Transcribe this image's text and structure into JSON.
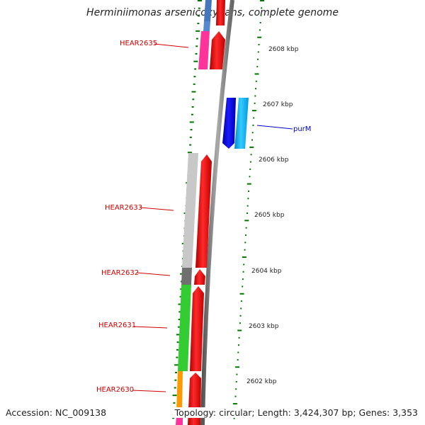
{
  "title": "Herminiimonas arsenicoxydans, complete genome",
  "footer": {
    "accession": "Accession: NC_009138",
    "topology": "Topology: circular; Length: 3,424,307 bp; Genes: 3,353"
  },
  "ruler": {
    "unit": "kbp",
    "labels": [
      "2608 kbp",
      "2607 kbp",
      "2606 kbp",
      "2605 kbp",
      "2604 kbp",
      "2603 kbp",
      "2602 kbp"
    ]
  },
  "genes": [
    {
      "name": "HEAR2635",
      "label_color": "#cc0000"
    },
    {
      "name": "purM",
      "label_color": "#0000cc"
    },
    {
      "name": "HEAR2633",
      "label_color": "#cc0000"
    },
    {
      "name": "HEAR2632",
      "label_color": "#cc0000"
    },
    {
      "name": "HEAR2631",
      "label_color": "#cc0000"
    },
    {
      "name": "HEAR2630",
      "label_color": "#cc0000"
    }
  ],
  "colors": {
    "backbone": "#888888",
    "gene_red": "#ff0000",
    "gene_blue": "#0000ee",
    "gene_cyan": "#22bbff",
    "cog_pink": "#ff3399",
    "cog_steel": "#4477bb",
    "cog_lightgray": "#c8c8c8",
    "cog_darkgray": "#707070",
    "cog_green": "#33cc33",
    "cog_orange": "#ff9900",
    "gc_ticks": "#007700"
  }
}
